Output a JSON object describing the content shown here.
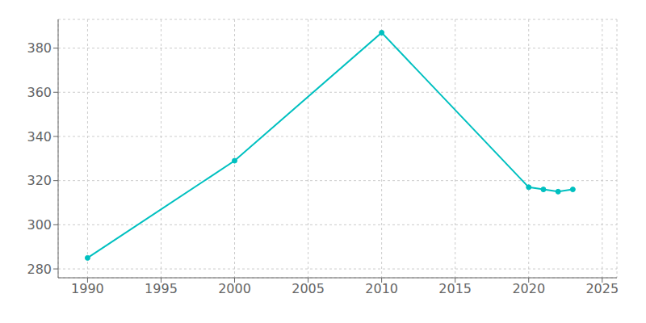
{
  "chart_data": {
    "type": "line",
    "x": [
      1990,
      2000,
      2010,
      2020,
      2021,
      2022,
      2023
    ],
    "values": [
      285,
      329,
      387,
      317,
      316,
      315,
      316
    ],
    "color": "#00C0C0",
    "marker": "circle",
    "xlim": [
      1988,
      2026
    ],
    "ylim": [
      276,
      393
    ],
    "xticks": [
      1990,
      1995,
      2000,
      2005,
      2010,
      2015,
      2020,
      2025
    ],
    "yticks": [
      280,
      300,
      320,
      340,
      360,
      380
    ],
    "grid": true
  }
}
